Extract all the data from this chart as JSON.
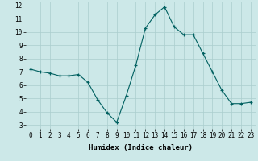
{
  "x": [
    0,
    1,
    2,
    3,
    4,
    5,
    6,
    7,
    8,
    9,
    10,
    11,
    12,
    13,
    14,
    15,
    16,
    17,
    18,
    19,
    20,
    21,
    22,
    23
  ],
  "y": [
    7.2,
    7.0,
    6.9,
    6.7,
    6.7,
    6.8,
    6.2,
    4.9,
    3.9,
    3.2,
    5.2,
    7.5,
    10.3,
    11.3,
    11.9,
    10.4,
    9.8,
    9.8,
    8.4,
    7.0,
    5.6,
    4.6,
    4.6,
    4.7
  ],
  "xlabel": "Humidex (Indice chaleur)",
  "ylim_min": 3,
  "ylim_max": 12,
  "xlim_min": 0,
  "xlim_max": 23,
  "yticks": [
    3,
    4,
    5,
    6,
    7,
    8,
    9,
    10,
    11,
    12
  ],
  "xticks": [
    0,
    1,
    2,
    3,
    4,
    5,
    6,
    7,
    8,
    9,
    10,
    11,
    12,
    13,
    14,
    15,
    16,
    17,
    18,
    19,
    20,
    21,
    22,
    23
  ],
  "line_color": "#006060",
  "marker_color": "#006060",
  "bg_color": "#cce8e8",
  "grid_color": "#aacece",
  "font_family": "monospace",
  "tick_fontsize": 5.5,
  "xlabel_fontsize": 6.5
}
